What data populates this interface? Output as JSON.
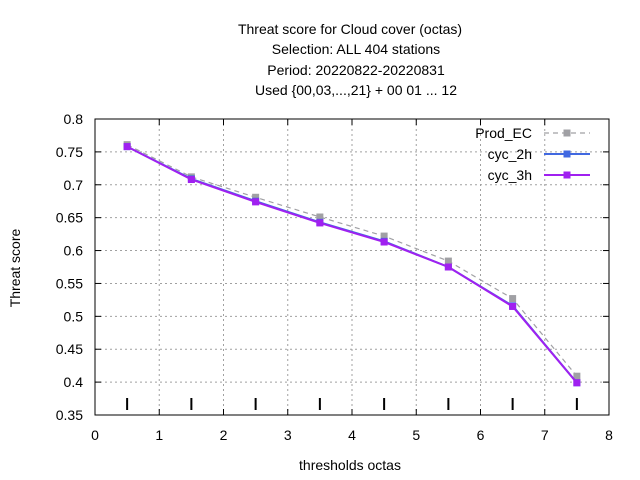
{
  "chart_data": {
    "type": "line",
    "title_lines": [
      "Threat score  for Cloud cover (octas)",
      "Selection: ALL    404 stations",
      "Period: 20220822-20220831",
      "Used {00,03,...,21} + 00 01 ... 12"
    ],
    "xlabel": "thresholds octas",
    "ylabel": "Threat score",
    "xlim": [
      0,
      8
    ],
    "ylim": [
      0.35,
      0.8
    ],
    "xticks": [
      0,
      1,
      2,
      3,
      4,
      5,
      6,
      7,
      8
    ],
    "xtick_labels": [
      "0",
      "1",
      "2",
      "3",
      "4",
      "5",
      "6",
      "7",
      "8"
    ],
    "yticks": [
      0.35,
      0.4,
      0.45,
      0.5,
      0.55,
      0.6,
      0.65,
      0.7,
      0.75,
      0.8
    ],
    "ytick_labels": [
      "0.35",
      "0.4",
      "0.45",
      "0.5",
      "0.55",
      "0.6",
      "0.65",
      "0.7",
      "0.75",
      "0.8"
    ],
    "grid": true,
    "legend_position": "top-right",
    "x": [
      0.5,
      1.5,
      2.5,
      3.5,
      4.5,
      5.5,
      6.5,
      7.5
    ],
    "series": [
      {
        "name": "Prod_EC",
        "values": [
          0.761,
          0.712,
          0.681,
          0.651,
          0.622,
          0.584,
          0.527,
          0.409
        ],
        "color": "#a0a0a4",
        "dashed": true
      },
      {
        "name": "cyc_2h",
        "values": [
          0.758,
          0.709,
          0.675,
          0.643,
          0.614,
          0.575,
          0.516,
          0.399
        ],
        "color": "#4169e1",
        "dashed": false
      },
      {
        "name": "cyc_3h",
        "values": [
          0.758,
          0.708,
          0.674,
          0.642,
          0.613,
          0.575,
          0.515,
          0.399
        ],
        "color": "#a020f0",
        "dashed": false
      }
    ],
    "bin_markers_x": [
      0.5,
      1.5,
      2.5,
      3.5,
      4.5,
      5.5,
      6.5,
      7.5
    ]
  }
}
